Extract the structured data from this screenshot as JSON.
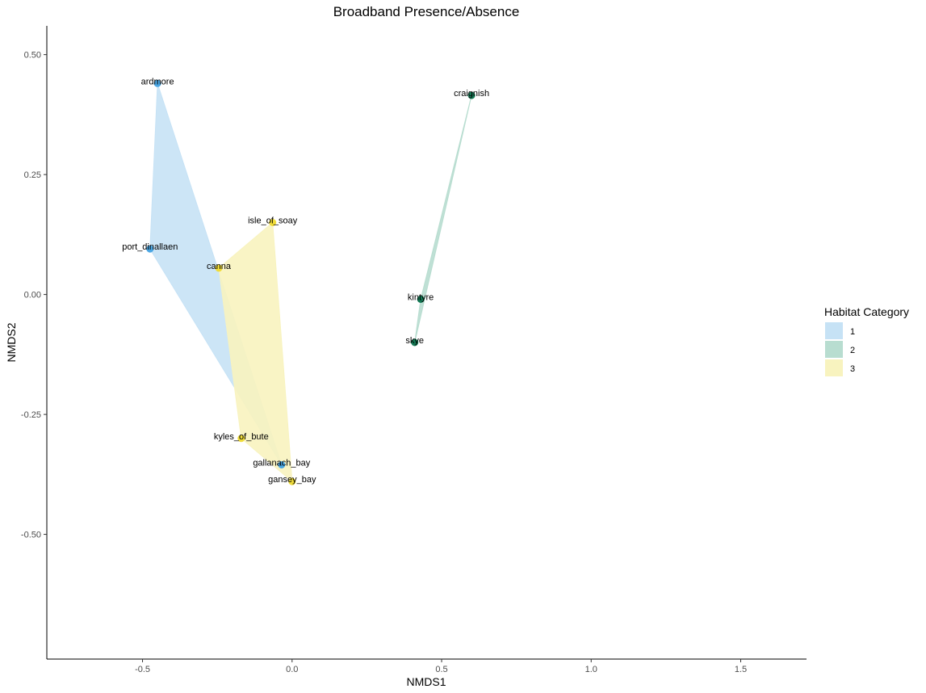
{
  "chart_data": {
    "type": "scatter",
    "title": "Broadband Presence/Absence",
    "xlabel": "NMDS1",
    "ylabel": "NMDS2",
    "xlim": [
      -0.82,
      1.72
    ],
    "ylim": [
      -0.76,
      0.56
    ],
    "xticks": [
      -0.5,
      0.0,
      0.5,
      1.0,
      1.5
    ],
    "xtick_labels": [
      "-0.5",
      "0.0",
      "0.5",
      "1.0",
      "1.5"
    ],
    "yticks": [
      -0.5,
      -0.25,
      0.0,
      0.25,
      0.5
    ],
    "ytick_labels": [
      "-0.50",
      "-0.25",
      "0.00",
      "0.25",
      "0.50"
    ],
    "grid": false,
    "legend": {
      "title": "Habitat Category",
      "position": "right",
      "entries": [
        "1",
        "2",
        "3"
      ]
    },
    "groups": [
      {
        "name": "1",
        "fill_color": "#c6e2f5",
        "point_color": "#4aa6e3",
        "hull": [
          "ardmore",
          "gallanach_bay",
          "port_dinallaen"
        ]
      },
      {
        "name": "2",
        "fill_color": "#b8ddd0",
        "point_color": "#137a55",
        "hull": [
          "craignish",
          "skye",
          "kintyre"
        ]
      },
      {
        "name": "3",
        "fill_color": "#f8f3bf",
        "point_color": "#f0dc3a",
        "hull": [
          "isle_of_soay",
          "gansey_bay",
          "kyles_of_bute",
          "canna"
        ]
      }
    ],
    "points": [
      {
        "label": "ardmore",
        "group": "1",
        "x": -0.45,
        "y": 0.44
      },
      {
        "label": "port_dinallaen",
        "group": "1",
        "x": -0.475,
        "y": 0.095
      },
      {
        "label": "gallanach_bay",
        "group": "1",
        "x": -0.035,
        "y": -0.355
      },
      {
        "label": "craignish",
        "group": "2",
        "x": 0.6,
        "y": 0.415
      },
      {
        "label": "kintyre",
        "group": "2",
        "x": 0.43,
        "y": -0.01
      },
      {
        "label": "skye",
        "group": "2",
        "x": 0.41,
        "y": -0.1
      },
      {
        "label": "isle_of_soay",
        "group": "3",
        "x": -0.065,
        "y": 0.15
      },
      {
        "label": "canna",
        "group": "3",
        "x": -0.245,
        "y": 0.055
      },
      {
        "label": "kyles_of_bute",
        "group": "3",
        "x": -0.17,
        "y": -0.3
      },
      {
        "label": "gansey_bay",
        "group": "3",
        "x": 0.0,
        "y": -0.39
      }
    ]
  }
}
